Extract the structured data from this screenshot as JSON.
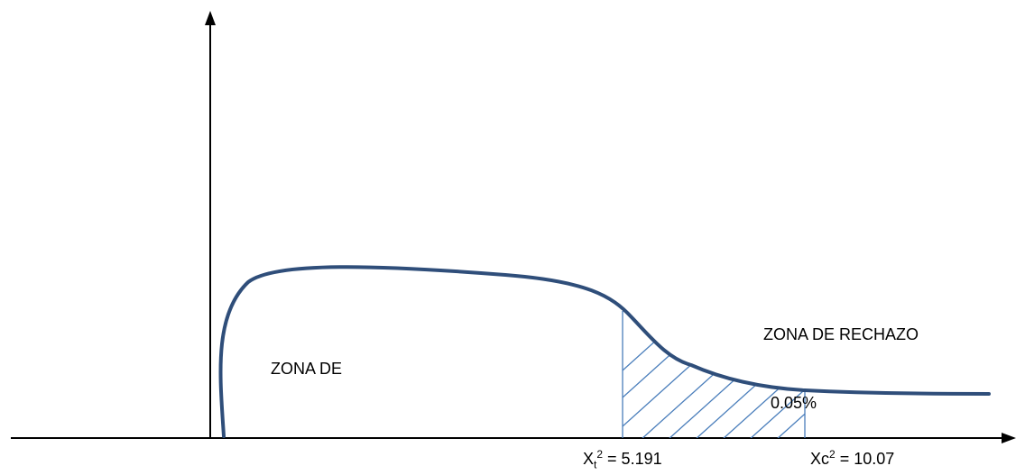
{
  "labels": {
    "acceptance_zone": "ZONA DE",
    "rejection_zone": "ZONA DE RECHAZO",
    "significance": "0.05%",
    "x_table": {
      "base": "X",
      "sub": "t",
      "sup": "2",
      "value": " = 5.191"
    },
    "x_calc": {
      "base": "Xc",
      "sup": "2",
      "value": " = 10.07"
    }
  },
  "colors": {
    "axis": "#000000",
    "curve": "#2f4e7a",
    "hatch": "#4a7ebb",
    "text": "#000000"
  }
}
